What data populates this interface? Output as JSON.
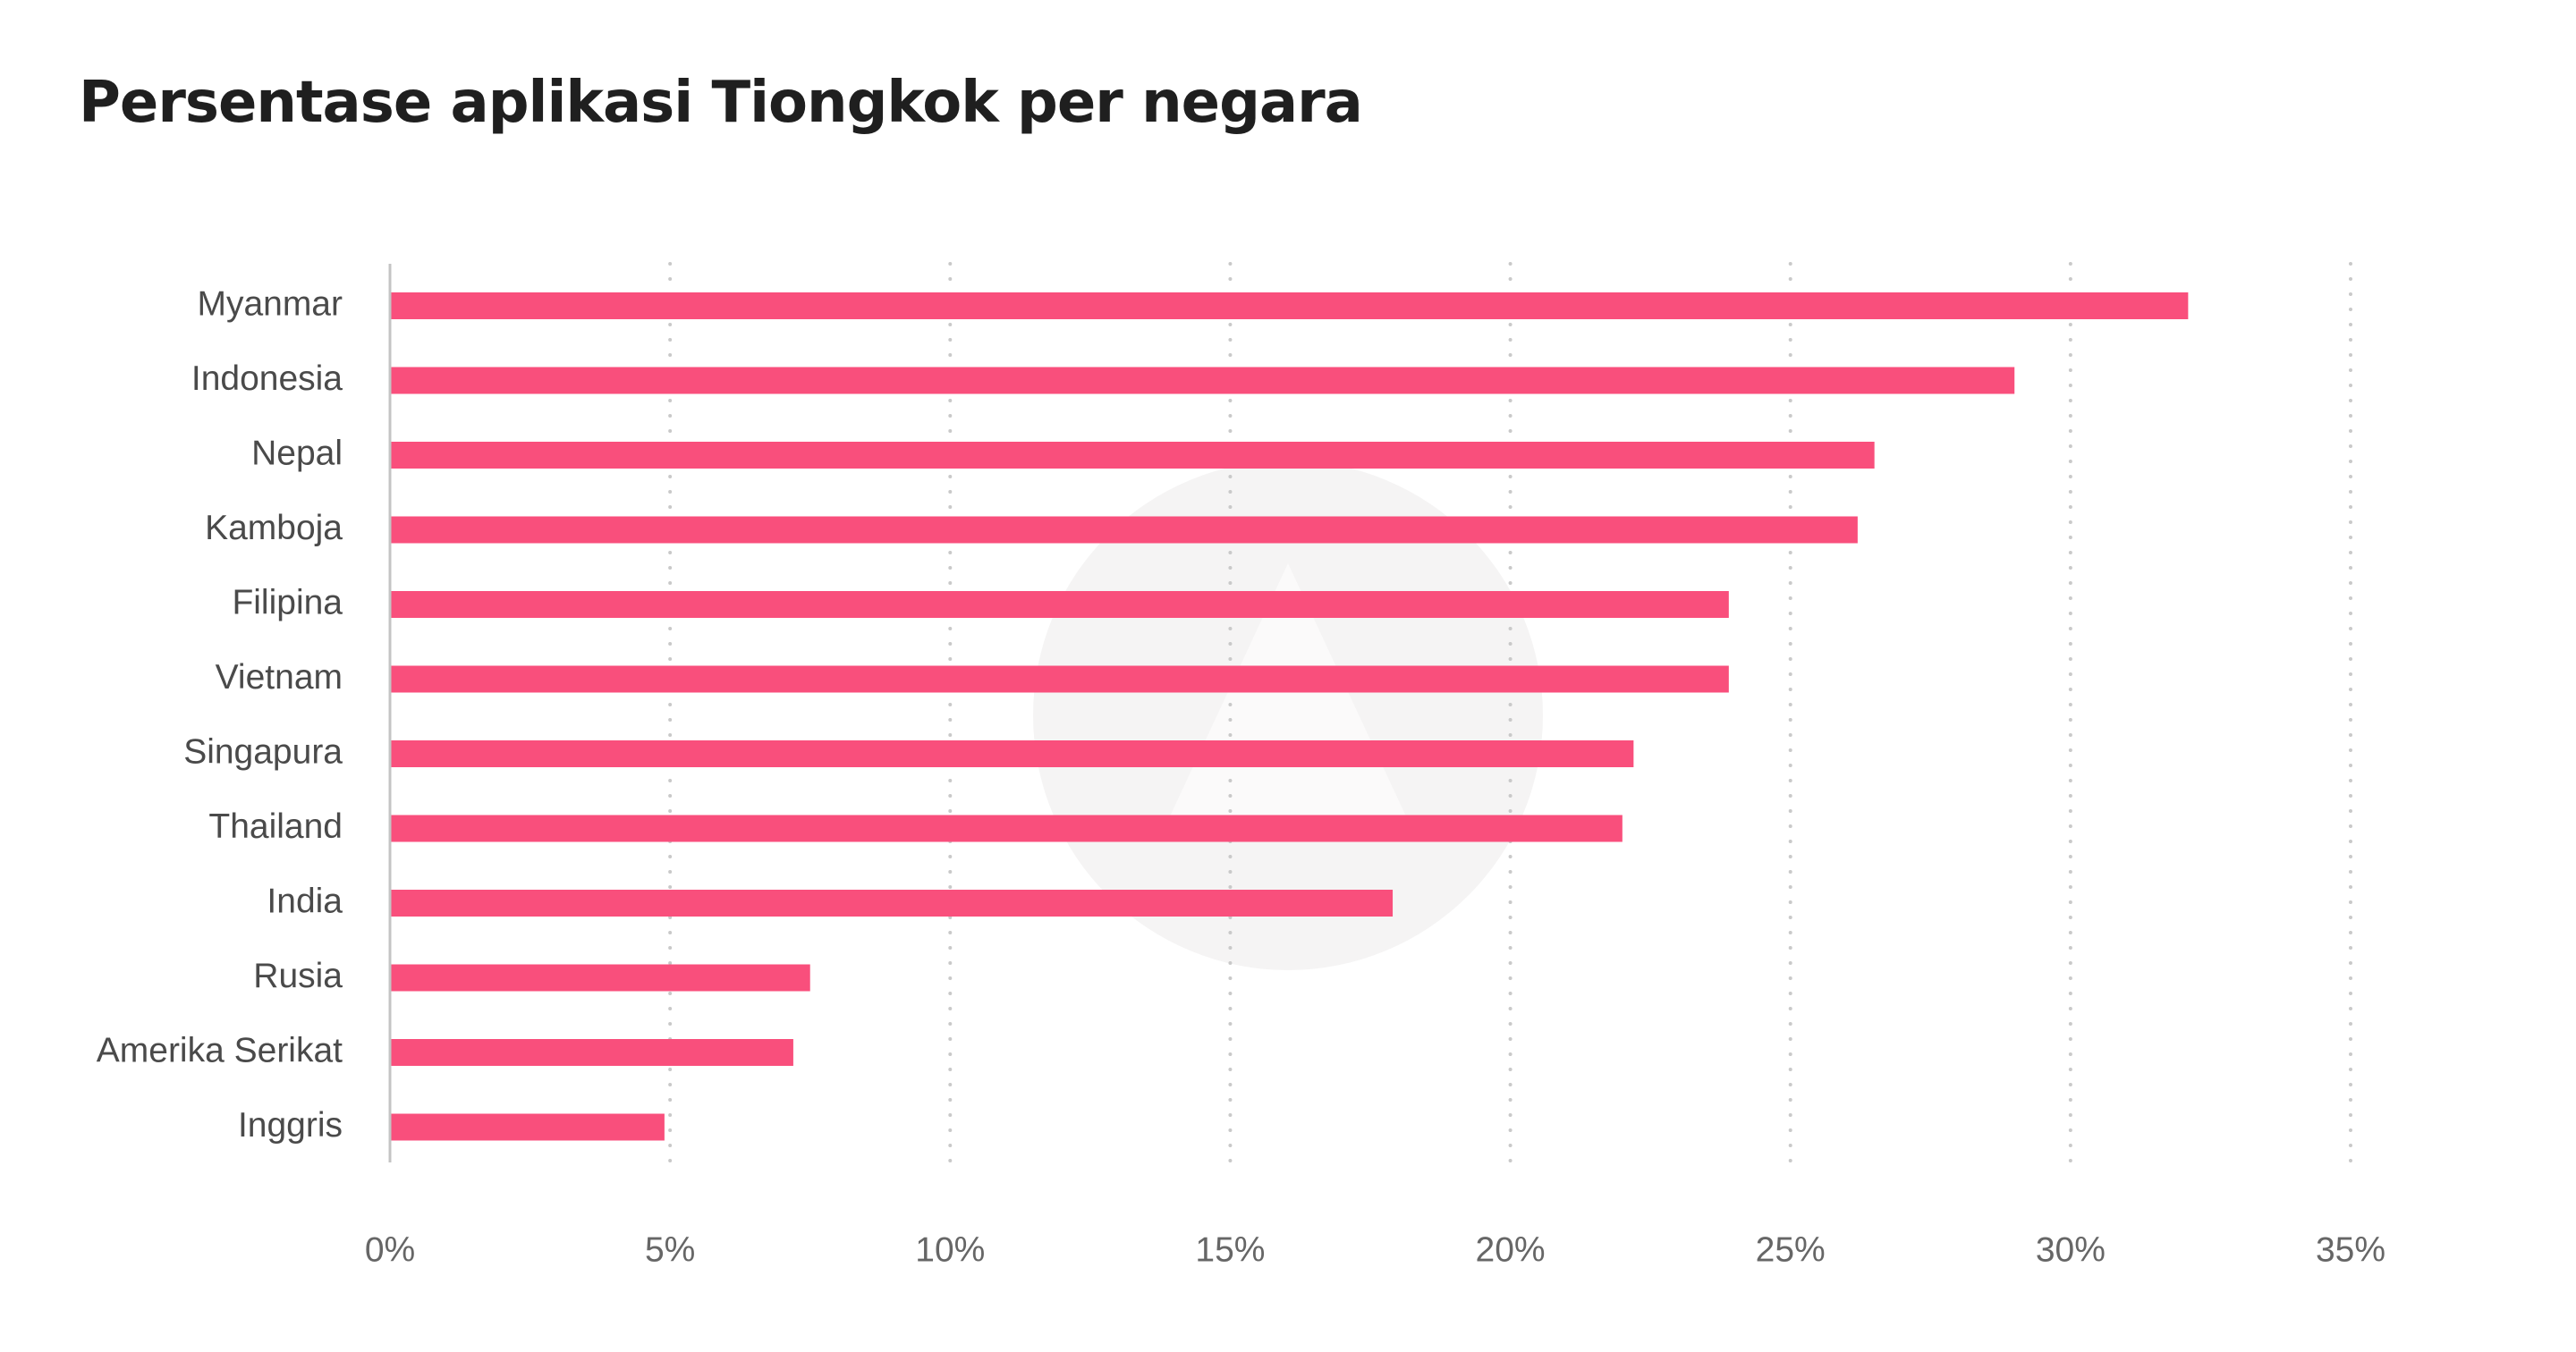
{
  "chart_data": {
    "type": "bar",
    "orientation": "horizontal",
    "title": "Persentase aplikasi Tiongkok per negara",
    "xlabel": "",
    "ylabel": "",
    "categories": [
      "Myanmar",
      "Indonesia",
      "Nepal",
      "Kamboja",
      "Filipina",
      "Vietnam",
      "Singapura",
      "Thailand",
      "India",
      "Rusia",
      "Amerika Serikat",
      "Inggris"
    ],
    "values": [
      32.1,
      29.0,
      26.5,
      26.2,
      23.9,
      23.9,
      22.2,
      22.0,
      17.9,
      7.5,
      7.2,
      4.9
    ],
    "xlim": [
      0,
      35
    ],
    "xticks": [
      0,
      5,
      10,
      15,
      20,
      25,
      30,
      35
    ],
    "xtick_labels": [
      "0%",
      "5%",
      "10%",
      "15%",
      "20%",
      "25%",
      "30%",
      "35%"
    ],
    "grid": "vertical dotted",
    "legend": "none",
    "colors": {
      "bar": "#f94f7c",
      "grid": "#c9c9c9",
      "axis": "#c4c4c4",
      "watermark": "#f5f4f4"
    }
  }
}
